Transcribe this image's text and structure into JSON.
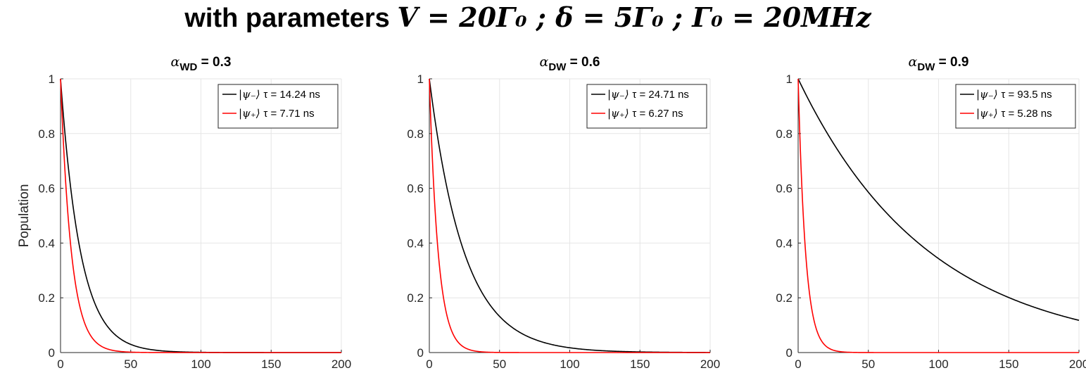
{
  "header": {
    "title_prefix": "with parameters ",
    "title_math": "V = 20Γ₀ ; δ = 5Γ₀ ; Γ₀ = 20MHz"
  },
  "colors": {
    "minus_state": "#000000",
    "plus_state": "#ff0000",
    "grid": "#e6e6e6",
    "axes": "#262626"
  },
  "chart_data": [
    {
      "type": "line",
      "title_symbol": "α",
      "title_subscript": "WD",
      "title_value": "= 0.3",
      "xlabel": "",
      "ylabel": "Population",
      "xlim": [
        0,
        200
      ],
      "ylim": [
        0,
        1
      ],
      "xticks": [
        0,
        50,
        100,
        150,
        200
      ],
      "yticks": [
        0,
        0.2,
        0.4,
        0.6,
        0.8,
        1
      ],
      "grid": true,
      "legend_position": "top-right",
      "series": [
        {
          "state": "|ψ₋⟩",
          "tau_label": "τ = 14.24 ns",
          "tau": 14.24,
          "color": "#000000"
        },
        {
          "state": "|ψ₊⟩",
          "tau_label": "τ = 7.71 ns",
          "tau": 7.71,
          "color": "#ff0000"
        }
      ]
    },
    {
      "type": "line",
      "title_symbol": "α",
      "title_subscript": "DW",
      "title_value": "= 0.6",
      "xlabel": "",
      "ylabel": "",
      "xlim": [
        0,
        200
      ],
      "ylim": [
        0,
        1
      ],
      "xticks": [
        0,
        50,
        100,
        150,
        200
      ],
      "yticks": [
        0,
        0.2,
        0.4,
        0.6,
        0.8,
        1
      ],
      "grid": true,
      "legend_position": "top-right",
      "series": [
        {
          "state": "|ψ₋⟩",
          "tau_label": "τ = 24.71 ns",
          "tau": 24.71,
          "color": "#000000"
        },
        {
          "state": "|ψ₊⟩",
          "tau_label": "τ = 6.27 ns",
          "tau": 6.27,
          "color": "#ff0000"
        }
      ]
    },
    {
      "type": "line",
      "title_symbol": "α",
      "title_subscript": "DW",
      "title_value": "= 0.9",
      "xlabel": "",
      "ylabel": "",
      "xlim": [
        0,
        200
      ],
      "ylim": [
        0,
        1
      ],
      "xticks": [
        0,
        50,
        100,
        150,
        200
      ],
      "yticks": [
        0,
        0.2,
        0.4,
        0.6,
        0.8,
        1
      ],
      "grid": true,
      "legend_position": "top-right",
      "series": [
        {
          "state": "|ψ₋⟩",
          "tau_label": "τ = 93.5 ns",
          "tau": 93.5,
          "color": "#000000"
        },
        {
          "state": "|ψ₊⟩",
          "tau_label": "τ = 5.28 ns",
          "tau": 5.28,
          "color": "#ff0000"
        }
      ]
    }
  ]
}
